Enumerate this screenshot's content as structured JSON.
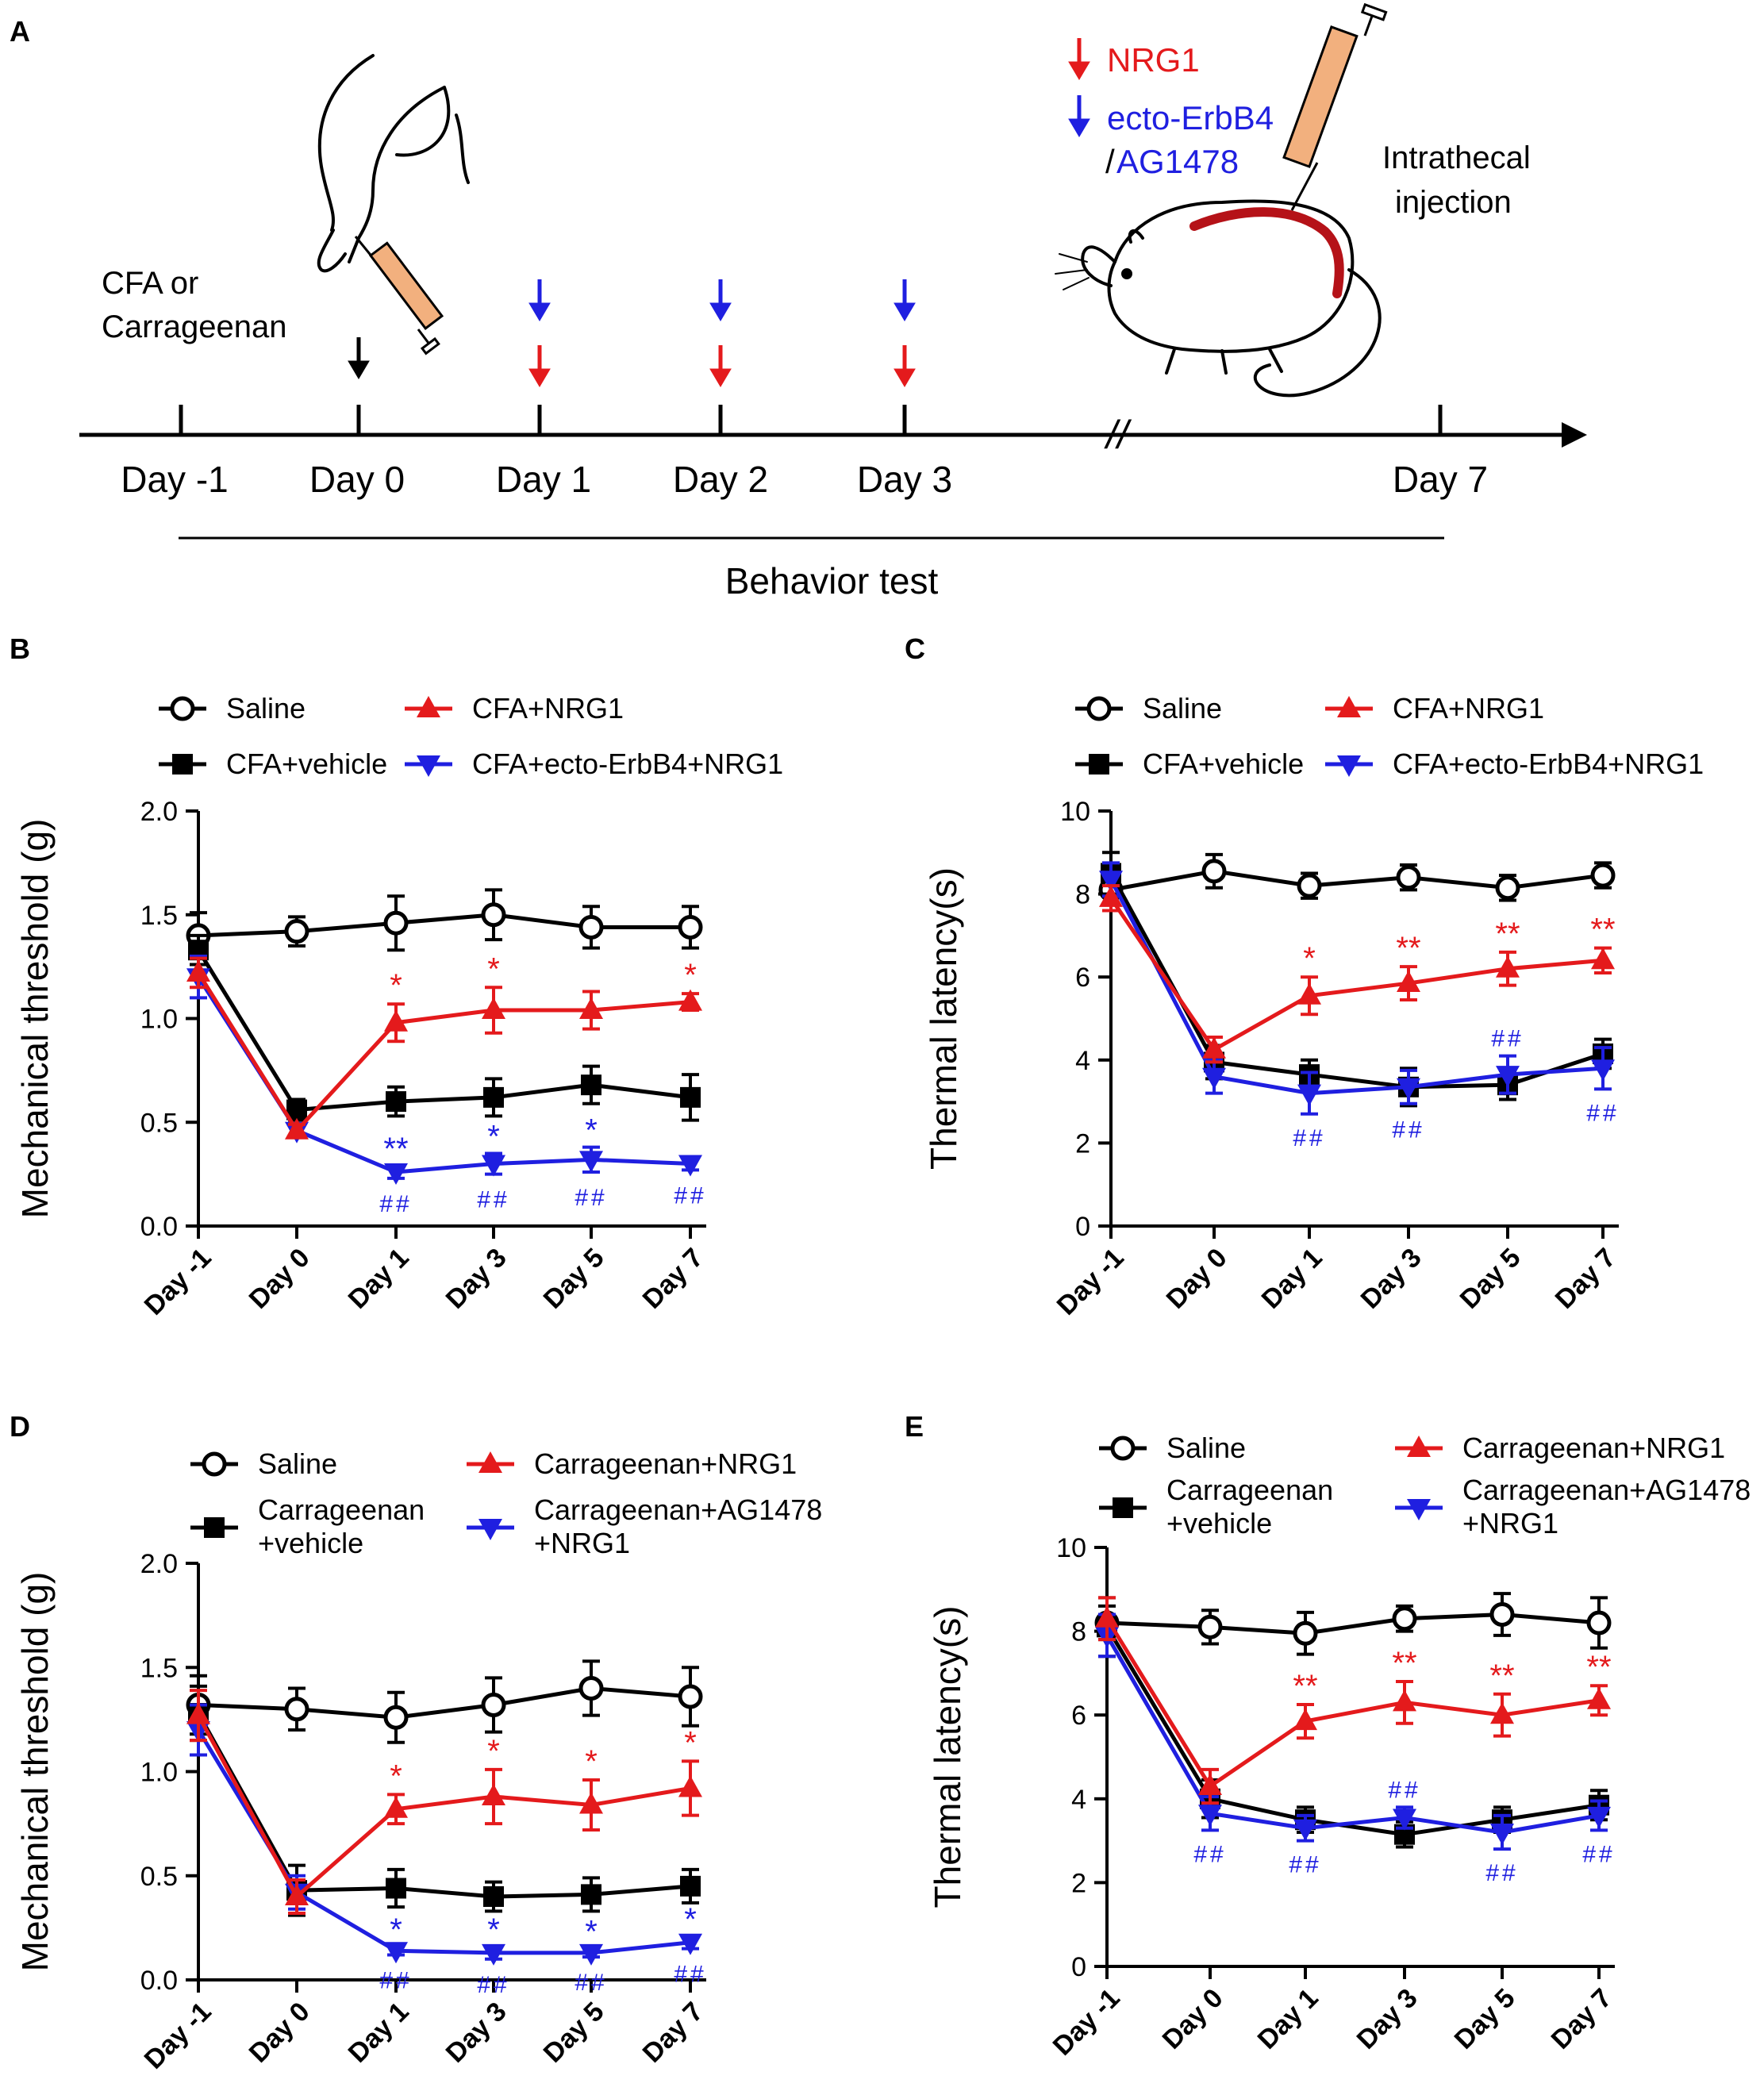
{
  "panel_a": {
    "letter": "A",
    "legend_nrg1": "NRG1",
    "legend_ecto": "ecto-ErbB4",
    "legend_slash": "/",
    "legend_ag": "AG1478",
    "injection_line1": "Intrathecal",
    "injection_line2": "injection",
    "induction_line1": "CFA  or",
    "induction_line2": "Carrageenan",
    "days": [
      "Day -1",
      "Day 0",
      "Day 1",
      "Day 2",
      "Day 3",
      "Day 7"
    ],
    "axis_break": "//",
    "behavior_label": "Behavior test",
    "colors": {
      "nrg1": "#e41a1c",
      "ecto": "#1f1fe0",
      "induction": "#000000",
      "spinal": "#b51218",
      "syringe": "#f2b07e"
    }
  },
  "chart_data": [
    {
      "panel": "B",
      "type": "line",
      "ylabel": "Mechanical threshold (g)",
      "ylim": [
        0,
        2.0
      ],
      "yticks": [
        "0.0",
        "0.5",
        "1.0",
        "1.5",
        "2.0"
      ],
      "categories": [
        "Day -1",
        "Day 0",
        "Day 1",
        "Day 3",
        "Day 5",
        "Day 7"
      ],
      "legend": [
        [
          "Saline",
          "CFA+NRG1"
        ],
        [
          "CFA+vehicle",
          "CFA+ecto-ErbB4+NRG1"
        ]
      ],
      "series": [
        {
          "name": "Saline",
          "marker": "circle-open",
          "color": "#000000",
          "values": [
            1.4,
            1.42,
            1.46,
            1.5,
            1.44,
            1.44
          ],
          "errors": [
            0.11,
            0.07,
            0.13,
            0.12,
            0.1,
            0.1
          ]
        },
        {
          "name": "CFA+vehicle",
          "marker": "square",
          "color": "#000000",
          "values": [
            1.33,
            0.56,
            0.6,
            0.62,
            0.68,
            0.62
          ],
          "errors": [
            0.07,
            0.05,
            0.07,
            0.09,
            0.09,
            0.11
          ]
        },
        {
          "name": "CFA+NRG1",
          "marker": "triangle-up",
          "color": "#e41a1c",
          "values": [
            1.22,
            0.46,
            0.98,
            1.04,
            1.04,
            1.08
          ],
          "errors": [
            0.07,
            0.03,
            0.09,
            0.11,
            0.09,
            0.04
          ]
        },
        {
          "name": "CFA+ecto-ErbB4+NRG1",
          "marker": "triangle-down",
          "color": "#1f1fe0",
          "values": [
            1.2,
            0.46,
            0.26,
            0.3,
            0.32,
            0.3
          ],
          "errors": [
            0.1,
            0.03,
            0.03,
            0.05,
            0.06,
            0.03
          ]
        }
      ],
      "annotations": {
        "red_star": [
          "",
          "",
          "*",
          "*",
          "",
          "*"
        ],
        "blue_star": [
          "",
          "",
          "**",
          "*",
          "*",
          ""
        ],
        "blue_hash": [
          "",
          "",
          "##",
          "##",
          "##",
          "##"
        ]
      }
    },
    {
      "panel": "C",
      "type": "line",
      "ylabel": "Thermal latency(s)",
      "ylim": [
        0,
        10
      ],
      "yticks": [
        "0",
        "2",
        "4",
        "6",
        "8",
        "10"
      ],
      "categories": [
        "Day -1",
        "Day 0",
        "Day 1",
        "Day 3",
        "Day 5",
        "Day 7"
      ],
      "legend": [
        [
          "Saline",
          "CFA+NRG1"
        ],
        [
          "CFA+vehicle",
          "CFA+ecto-ErbB4+NRG1"
        ]
      ],
      "series": [
        {
          "name": "Saline",
          "marker": "circle-open",
          "color": "#000000",
          "values": [
            8.1,
            8.55,
            8.2,
            8.4,
            8.15,
            8.45
          ],
          "errors": [
            0.5,
            0.4,
            0.3,
            0.3,
            0.3,
            0.3
          ]
        },
        {
          "name": "CFA+vehicle",
          "marker": "square",
          "color": "#000000",
          "values": [
            8.5,
            3.95,
            3.65,
            3.35,
            3.4,
            4.15
          ],
          "errors": [
            0.5,
            0.4,
            0.35,
            0.45,
            0.35,
            0.35
          ]
        },
        {
          "name": "CFA+NRG1",
          "marker": "triangle-up",
          "color": "#e41a1c",
          "values": [
            7.9,
            4.25,
            5.55,
            5.85,
            6.2,
            6.4
          ],
          "errors": [
            0.3,
            0.3,
            0.45,
            0.4,
            0.4,
            0.3
          ]
        },
        {
          "name": "CFA+ecto-ErbB4+NRG1",
          "marker": "triangle-down",
          "color": "#1f1fe0",
          "values": [
            8.35,
            3.6,
            3.2,
            3.35,
            3.65,
            3.8
          ],
          "errors": [
            0.4,
            0.4,
            0.5,
            0.4,
            0.45,
            0.5
          ]
        }
      ],
      "annotations": {
        "red_star": [
          "",
          "",
          "*",
          "**",
          "**",
          "**"
        ],
        "blue_hash_above": [
          "",
          "",
          "",
          "",
          "##",
          ""
        ],
        "blue_hash_below": [
          "",
          "",
          "##",
          "##",
          "",
          "##"
        ]
      }
    },
    {
      "panel": "D",
      "type": "line",
      "ylabel": "Mechanical threshold (g)",
      "ylim": [
        0,
        2.0
      ],
      "yticks": [
        "0.0",
        "0.5",
        "1.0",
        "1.5",
        "2.0"
      ],
      "categories": [
        "Day -1",
        "Day 0",
        "Day 1",
        "Day 3",
        "Day 5",
        "Day 7"
      ],
      "legend": [
        [
          "Saline",
          "Carrageenan+NRG1"
        ],
        [
          "Carrageenan\n+vehicle",
          "Carrageenan+AG1478\n+NRG1"
        ]
      ],
      "series": [
        {
          "name": "Saline",
          "marker": "circle-open",
          "color": "#000000",
          "values": [
            1.32,
            1.3,
            1.26,
            1.32,
            1.4,
            1.36
          ],
          "errors": [
            0.14,
            0.1,
            0.12,
            0.13,
            0.13,
            0.14
          ]
        },
        {
          "name": "Carrageenan+vehicle",
          "marker": "square",
          "color": "#000000",
          "values": [
            1.28,
            0.43,
            0.44,
            0.4,
            0.41,
            0.45
          ],
          "errors": [
            0.13,
            0.12,
            0.09,
            0.07,
            0.08,
            0.08
          ]
        },
        {
          "name": "Carrageenan+NRG1",
          "marker": "triangle-up",
          "color": "#e41a1c",
          "values": [
            1.27,
            0.4,
            0.82,
            0.88,
            0.84,
            0.92
          ],
          "errors": [
            0.12,
            0.08,
            0.07,
            0.13,
            0.12,
            0.13
          ]
        },
        {
          "name": "Carrageenan+AG1478+NRG1",
          "marker": "triangle-down",
          "color": "#1f1fe0",
          "values": [
            1.2,
            0.42,
            0.14,
            0.13,
            0.13,
            0.18
          ],
          "errors": [
            0.12,
            0.08,
            0.02,
            0.03,
            0.02,
            0.03
          ]
        }
      ],
      "annotations": {
        "red_star": [
          "",
          "",
          "*",
          "*",
          "*",
          "*"
        ],
        "blue_star": [
          "",
          "",
          "*",
          "*",
          "*",
          "*"
        ],
        "blue_hash": [
          "",
          "",
          "##",
          "##",
          "##",
          "##"
        ]
      }
    },
    {
      "panel": "E",
      "type": "line",
      "ylabel": "Thermal latency(s)",
      "ylim": [
        0,
        10
      ],
      "yticks": [
        "0",
        "2",
        "4",
        "6",
        "8",
        "10"
      ],
      "categories": [
        "Day -1",
        "Day 0",
        "Day 1",
        "Day 3",
        "Day 5",
        "Day 7"
      ],
      "legend": [
        [
          "Saline",
          "Carrageenan+NRG1"
        ],
        [
          "Carrageenan\n+vehicle",
          "Carrageenan+AG1478\n+NRG1"
        ]
      ],
      "series": [
        {
          "name": "Saline",
          "marker": "circle-open",
          "color": "#000000",
          "values": [
            8.2,
            8.1,
            7.95,
            8.3,
            8.4,
            8.2
          ],
          "errors": [
            0.4,
            0.4,
            0.5,
            0.3,
            0.5,
            0.6
          ]
        },
        {
          "name": "Carrageenan+vehicle",
          "marker": "square",
          "color": "#000000",
          "values": [
            8.1,
            4.0,
            3.5,
            3.15,
            3.5,
            3.85
          ],
          "errors": [
            0.7,
            0.45,
            0.3,
            0.3,
            0.3,
            0.35
          ]
        },
        {
          "name": "Carrageenan+NRG1",
          "marker": "triangle-up",
          "color": "#e41a1c",
          "values": [
            8.3,
            4.3,
            5.85,
            6.3,
            6.0,
            6.35
          ],
          "errors": [
            0.5,
            0.4,
            0.4,
            0.5,
            0.5,
            0.35
          ]
        },
        {
          "name": "Carrageenan+AG1478+NRG1",
          "marker": "triangle-down",
          "color": "#1f1fe0",
          "values": [
            7.9,
            3.65,
            3.3,
            3.55,
            3.2,
            3.6
          ],
          "errors": [
            0.5,
            0.4,
            0.3,
            0.25,
            0.4,
            0.35
          ]
        }
      ],
      "annotations": {
        "red_star": [
          "",
          "",
          "**",
          "**",
          "**",
          "**"
        ],
        "blue_hash_above": [
          "",
          "",
          "",
          "##",
          "",
          ""
        ],
        "blue_hash_below": [
          "",
          "##",
          "##",
          "",
          "##",
          "##"
        ]
      }
    }
  ]
}
